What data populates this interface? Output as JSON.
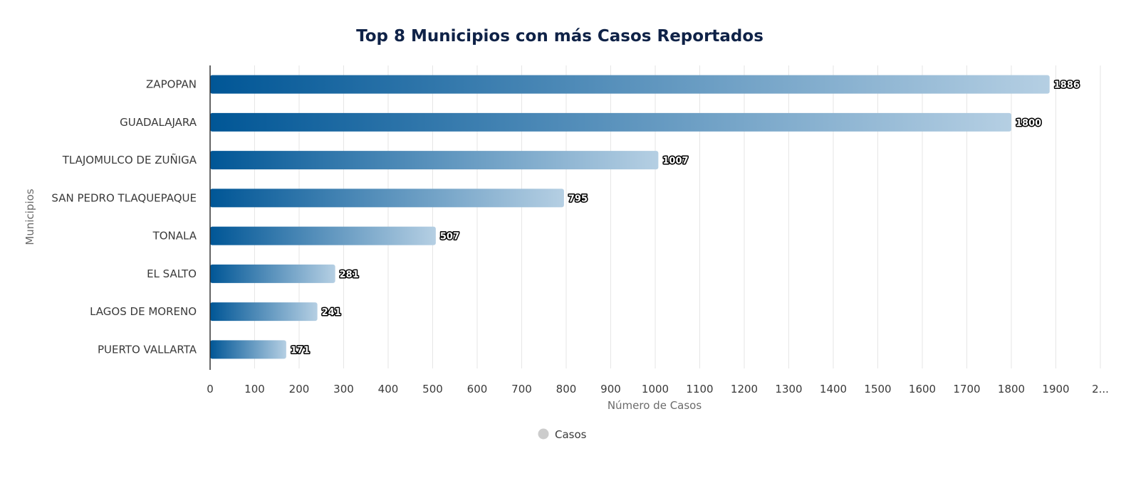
{
  "chart_data": {
    "type": "bar",
    "orientation": "horizontal",
    "title": "Top 8 Municipios con más Casos Reportados",
    "xlabel": "Número de Casos",
    "ylabel": "Municipios",
    "categories": [
      "ZAPOPAN",
      "GUADALAJARA",
      "TLAJOMULCO DE ZUÑIGA",
      "SAN PEDRO TLAQUEPAQUE",
      "TONALA",
      "EL SALTO",
      "LAGOS DE MORENO",
      "PUERTO VALLARTA"
    ],
    "series": [
      {
        "name": "Casos",
        "values": [
          1886,
          1800,
          1007,
          795,
          507,
          281,
          241,
          171
        ],
        "data_labels": [
          "1886",
          "1800",
          "1007",
          "795",
          "507",
          "281",
          "241",
          "171"
        ]
      }
    ],
    "xlim": [
      0,
      2000
    ],
    "x_ticks": [
      "0",
      "100",
      "200",
      "300",
      "400",
      "500",
      "600",
      "700",
      "800",
      "900",
      "1000",
      "1100",
      "1200",
      "1300",
      "1400",
      "1500",
      "1600",
      "1700",
      "1800",
      "1900",
      "2..."
    ],
    "grid": true,
    "legend": {
      "position": "bottom",
      "marker_color": "#cccccc"
    },
    "colors": {
      "bar_start": "#005696",
      "bar_end": "#b5cfe3",
      "title": "#0f2247"
    }
  }
}
